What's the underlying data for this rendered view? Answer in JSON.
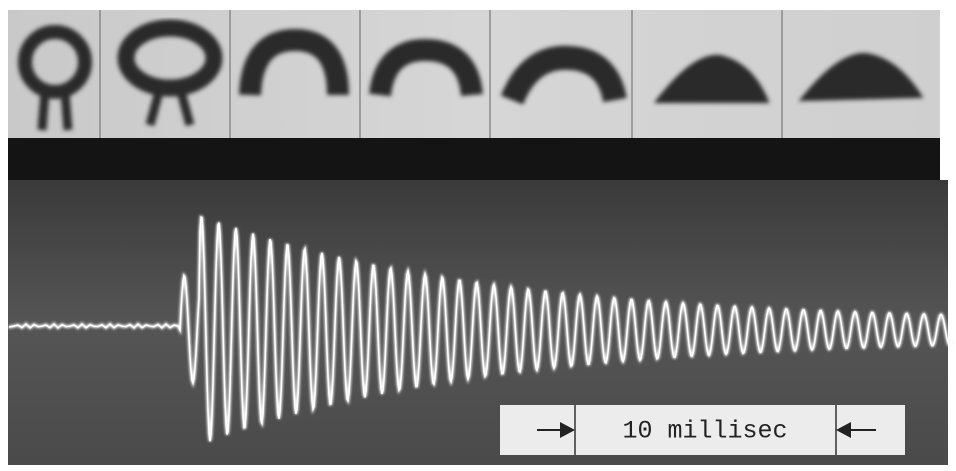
{
  "scale_label": "10 millisec"
}
